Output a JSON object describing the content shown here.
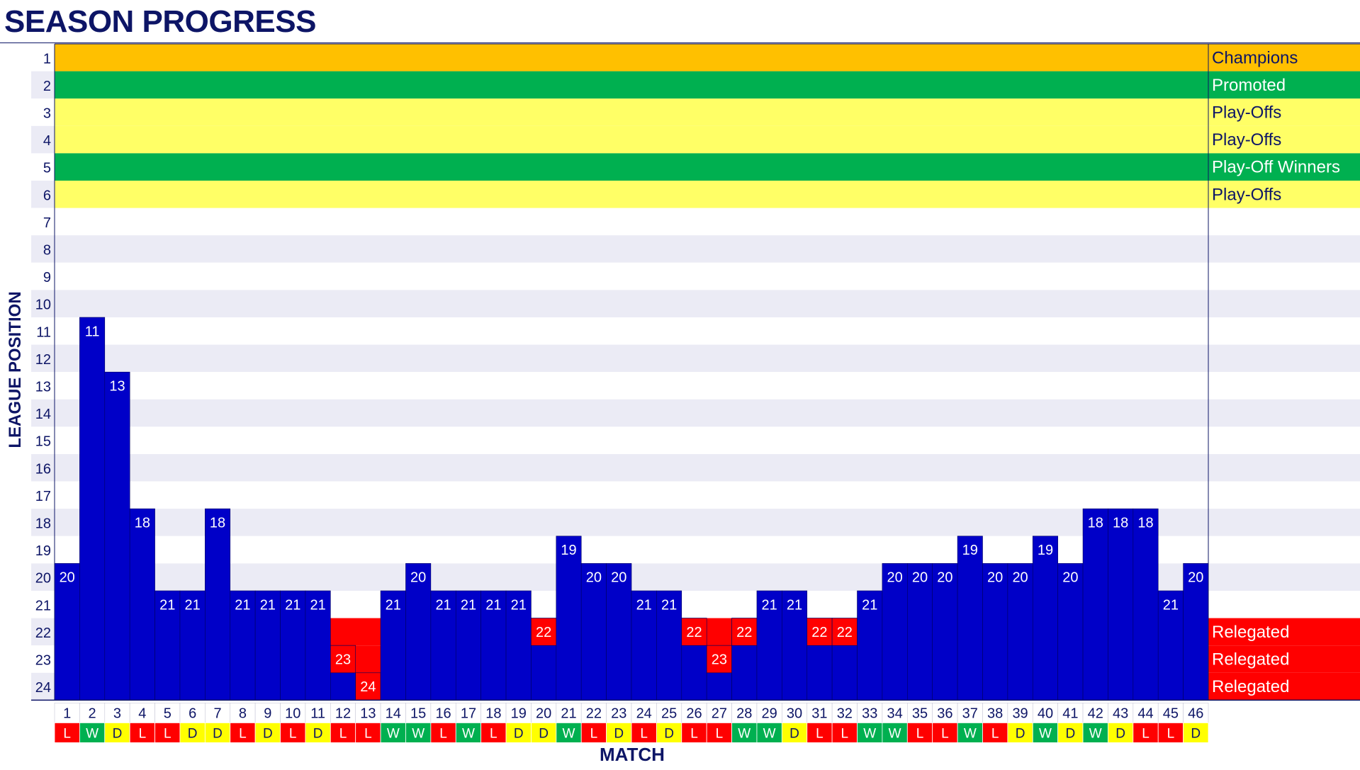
{
  "title": "SEASON PROGRESS",
  "chart_data": {
    "type": "bar",
    "xlabel": "MATCH",
    "ylabel": "LEAGUE POSITION",
    "ylim": [
      1,
      24
    ],
    "y_inverted": true,
    "categories": [
      1,
      2,
      3,
      4,
      5,
      6,
      7,
      8,
      9,
      10,
      11,
      12,
      13,
      14,
      15,
      16,
      17,
      18,
      19,
      20,
      21,
      22,
      23,
      24,
      25,
      26,
      27,
      28,
      29,
      30,
      31,
      32,
      33,
      34,
      35,
      36,
      37,
      38,
      39,
      40,
      41,
      42,
      43,
      44,
      45,
      46
    ],
    "positions": [
      20,
      11,
      13,
      18,
      21,
      21,
      18,
      21,
      21,
      21,
      21,
      23,
      24,
      21,
      20,
      21,
      21,
      21,
      21,
      22,
      19,
      20,
      20,
      21,
      21,
      22,
      23,
      22,
      21,
      21,
      22,
      22,
      21,
      20,
      20,
      20,
      19,
      20,
      20,
      19,
      20,
      18,
      18,
      18,
      21,
      20
    ],
    "results": [
      "L",
      "W",
      "D",
      "L",
      "L",
      "D",
      "D",
      "L",
      "D",
      "L",
      "D",
      "L",
      "L",
      "W",
      "W",
      "L",
      "W",
      "L",
      "D",
      "D",
      "W",
      "L",
      "D",
      "L",
      "D",
      "L",
      "L",
      "W",
      "W",
      "D",
      "L",
      "L",
      "W",
      "W",
      "L",
      "L",
      "W",
      "L",
      "D",
      "W",
      "D",
      "W",
      "D",
      "L",
      "L",
      "D"
    ],
    "zones": [
      {
        "position": 1,
        "label": "Champions",
        "color": "#ffc000",
        "text_color": "#0d1566"
      },
      {
        "position": 2,
        "label": "Promoted",
        "color": "#00b050",
        "text_color": "#ffffff"
      },
      {
        "position": 3,
        "label": "Play-Offs",
        "color": "#ffff66",
        "text_color": "#0d1566"
      },
      {
        "position": 4,
        "label": "Play-Offs",
        "color": "#ffff66",
        "text_color": "#0d1566"
      },
      {
        "position": 5,
        "label": "Play-Off Winners",
        "color": "#00b050",
        "text_color": "#ffffff"
      },
      {
        "position": 6,
        "label": "Play-Offs",
        "color": "#ffff66",
        "text_color": "#0d1566"
      },
      {
        "position": 22,
        "label": "Relegated",
        "color": "#ff0000",
        "text_color": "#ffffff"
      },
      {
        "position": 23,
        "label": "Relegated",
        "color": "#ff0000",
        "text_color": "#ffffff"
      },
      {
        "position": 24,
        "label": "Relegated",
        "color": "#ff0000",
        "text_color": "#ffffff"
      }
    ],
    "colors": {
      "bar": "#0000c8",
      "bar_relegation": "#ff0000",
      "band_alt": "#ebebf5",
      "band": "#ffffff",
      "win": "#00b050",
      "draw": "#ffff00",
      "loss": "#ff0000",
      "axis_text": "#0d1566"
    }
  }
}
